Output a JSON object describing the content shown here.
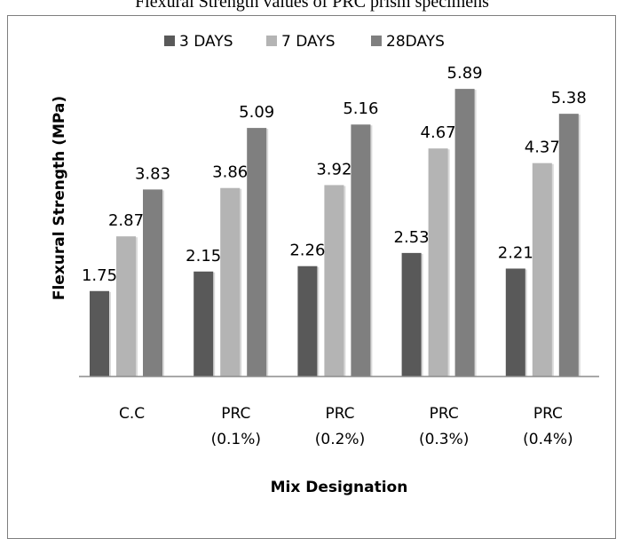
{
  "chart_data": {
    "type": "bar",
    "title": "Flexural Strength values of PRC prism specimens",
    "xlabel": "Mix Designation",
    "ylabel": "Flexural Strength (MPa)",
    "categories": [
      [
        "C.C"
      ],
      [
        "PRC",
        "(0.1%)"
      ],
      [
        "PRC",
        "(0.2%)"
      ],
      [
        "PRC",
        "(0.3%)"
      ],
      [
        "PRC",
        "(0.4%)"
      ]
    ],
    "series": [
      {
        "name": "3 DAYS",
        "color": "#595959",
        "values": [
          1.75,
          2.15,
          2.26,
          2.53,
          2.21
        ]
      },
      {
        "name": "7 DAYS",
        "color": "#b4b4b4",
        "values": [
          2.87,
          3.86,
          3.92,
          4.67,
          4.37
        ]
      },
      {
        "name": "28DAYS",
        "color": "#7f7f7f",
        "values": [
          3.83,
          5.09,
          5.16,
          5.89,
          5.38
        ]
      }
    ],
    "value_labels": [
      [
        "1.75",
        "2.15",
        "2.26",
        "2.53",
        "2.21"
      ],
      [
        "2.87",
        "3.86",
        "3.92",
        "4.67",
        "4.37"
      ],
      [
        "3.83",
        "5.09",
        "5.16",
        "5.89",
        "5.38"
      ]
    ],
    "ylim": [
      0,
      6.5
    ],
    "grid": false,
    "legend_position": "top"
  }
}
